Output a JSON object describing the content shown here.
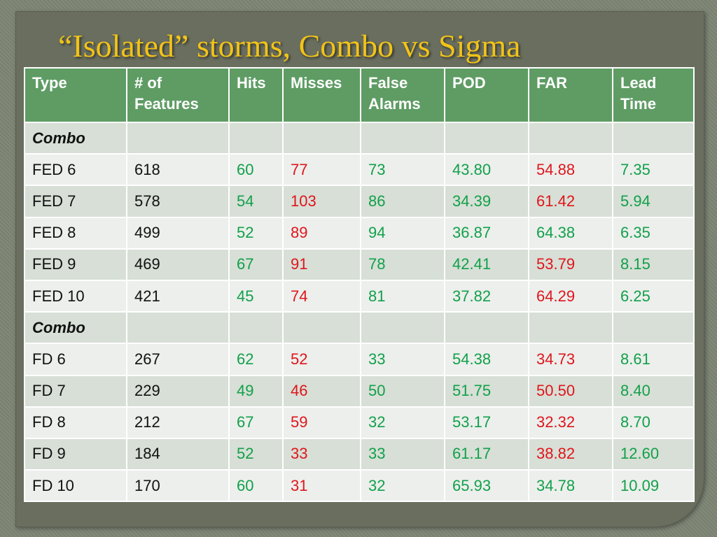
{
  "title": "“Isolated” storms, Combo vs Sigma",
  "colors": {
    "title": "#f2c318",
    "header_bg": "#5e9c64",
    "good": "#12a04a",
    "bad": "#e0151c"
  },
  "table": {
    "headers": [
      "Type",
      "# of Features",
      "Hits",
      "Misses",
      "False Alarms",
      "POD",
      "FAR",
      "Lead Time"
    ],
    "rows": [
      {
        "type": "group",
        "cells": [
          "Combo",
          "",
          "",
          "",
          "",
          "",
          "",
          ""
        ]
      },
      {
        "type": "data",
        "cells": [
          "FED 6",
          "618",
          "60",
          "77",
          "73",
          "43.80",
          "54.88",
          "7.35"
        ],
        "far_color": "red"
      },
      {
        "type": "data",
        "cells": [
          "FED 7",
          "578",
          "54",
          "103",
          "86",
          "34.39",
          "61.42",
          "5.94"
        ],
        "far_color": "red"
      },
      {
        "type": "data",
        "cells": [
          "FED 8",
          "499",
          "52",
          "89",
          "94",
          "36.87",
          "64.38",
          "6.35"
        ],
        "far_color": "green"
      },
      {
        "type": "data",
        "cells": [
          "FED 9",
          "469",
          "67",
          "91",
          "78",
          "42.41",
          "53.79",
          "8.15"
        ],
        "far_color": "red"
      },
      {
        "type": "data",
        "cells": [
          "FED 10",
          "421",
          "45",
          "74",
          "81",
          "37.82",
          "64.29",
          "6.25"
        ],
        "far_color": "red"
      },
      {
        "type": "group",
        "cells": [
          "Combo",
          "",
          "",
          "",
          "",
          "",
          "",
          ""
        ]
      },
      {
        "type": "data",
        "cells": [
          "FD 6",
          "267",
          "62",
          "52",
          "33",
          "54.38",
          "34.73",
          "8.61"
        ],
        "far_color": "red"
      },
      {
        "type": "data",
        "cells": [
          "FD 7",
          "229",
          "49",
          "46",
          "50",
          "51.75",
          "50.50",
          "8.40"
        ],
        "far_color": "red"
      },
      {
        "type": "data",
        "cells": [
          "FD 8",
          "212",
          "67",
          "59",
          "32",
          "53.17",
          "32.32",
          "8.70"
        ],
        "far_color": "red"
      },
      {
        "type": "data",
        "cells": [
          "FD 9",
          "184",
          "52",
          "33",
          "33",
          "61.17",
          "38.82",
          "12.60"
        ],
        "far_color": "red"
      },
      {
        "type": "data",
        "cells": [
          "FD 10",
          "170",
          "60",
          "31",
          "32",
          "65.93",
          "34.78",
          "10.09"
        ],
        "far_color": "green"
      }
    ]
  }
}
